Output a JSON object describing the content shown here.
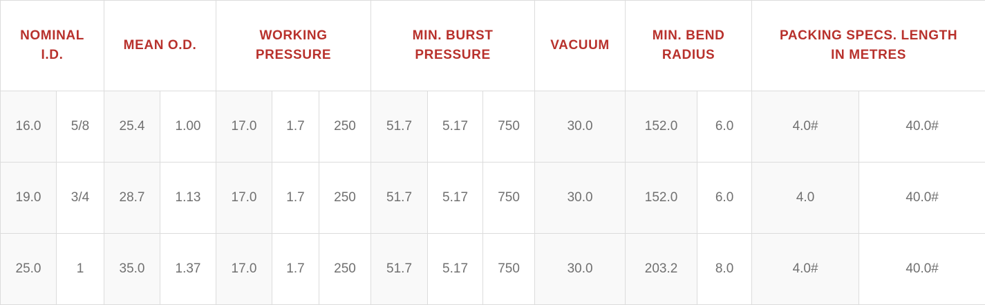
{
  "headers": {
    "nominal_id": [
      "NOMINAL",
      "I.D."
    ],
    "mean_od": [
      "MEAN O.D."
    ],
    "working_pressure": [
      "WORKING",
      "PRESSURE"
    ],
    "min_burst_pressure": [
      "MIN. BURST",
      "PRESSURE"
    ],
    "vacuum": [
      "VACUUM"
    ],
    "min_bend_radius": [
      "MIN. BEND",
      "RADIUS"
    ],
    "packing_specs": [
      "PACKING SPECS. LENGTH",
      "IN METRES"
    ]
  },
  "rows": [
    [
      "16.0",
      "5/8",
      "25.4",
      "1.00",
      "17.0",
      "1.7",
      "250",
      "51.7",
      "5.17",
      "750",
      "30.0",
      "152.0",
      "6.0",
      "4.0#",
      "40.0#"
    ],
    [
      "19.0",
      "3/4",
      "28.7",
      "1.13",
      "17.0",
      "1.7",
      "250",
      "51.7",
      "5.17",
      "750",
      "30.0",
      "152.0",
      "6.0",
      "4.0",
      "40.0#"
    ],
    [
      "25.0",
      "1",
      "35.0",
      "1.37",
      "17.0",
      "1.7",
      "250",
      "51.7",
      "5.17",
      "750",
      "30.0",
      "203.2",
      "8.0",
      "4.0#",
      "40.0#"
    ]
  ],
  "colors": {
    "header_text": "#b8312c",
    "cell_text": "#707070",
    "border": "#dcdcdc",
    "shaded_cell": "#f9f9f9"
  }
}
